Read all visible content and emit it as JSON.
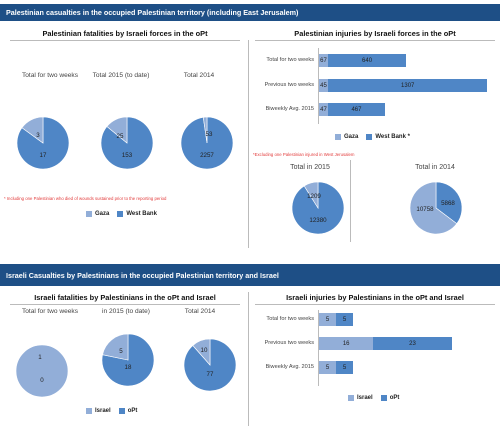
{
  "colors": {
    "light": "#92aed8",
    "dark": "#4f86c6",
    "banner": "#1e4f86",
    "note": "#e23b3b"
  },
  "section1": {
    "banner": "Palestinian casualties in the occupied Palestinian territory (including East Jerusalem)",
    "fatalities": {
      "title": "Palestinian fatalities by Israeli forces in the oPt",
      "pies": [
        {
          "label": "Total for two weeks",
          "light": 3,
          "dark": 17
        },
        {
          "label": "Total 2015 (to date)",
          "light": 25,
          "dark": 153
        },
        {
          "label": "Total 2014",
          "light": 2257,
          "dark": 53
        }
      ],
      "note": "* Including one Palestinian who died of wounds sustained prior to the reporting period",
      "legend": {
        "light": "Gaza",
        "dark": "West Bank"
      }
    },
    "injuries": {
      "title": "Palestinian injuries by Israeli forces in the oPt",
      "bars": [
        {
          "label": "Total for two weeks",
          "light": 67,
          "dark": 640
        },
        {
          "label": "Previous two weeks",
          "light": 45,
          "dark": 1307
        },
        {
          "label": "Biweekly Avg. 2015",
          "light": 47,
          "dark": 467
        }
      ],
      "legend": {
        "light": "Gaza",
        "dark": "West Bank *"
      },
      "note": "*Excluding one Palestinian injured in West Jerusalem",
      "pies": [
        {
          "label": "Total in 2015",
          "light": 1209,
          "dark": 12380
        },
        {
          "label": "Total in 2014",
          "light": 10758,
          "dark": 5868
        }
      ]
    }
  },
  "section2": {
    "banner": "Israeli Casualties by Palestinians in the occupied Palestinian territory and Israel",
    "fatalities": {
      "title": "Israeli fatalities by Palestinians in the oPt and Israel",
      "pies": [
        {
          "label": "Total for two weeks",
          "light": 1,
          "dark": 0
        },
        {
          "label": "in 2015 (to date)",
          "light": 5,
          "dark": 18
        },
        {
          "label": "Total 2014",
          "light": 10,
          "dark": 77
        }
      ],
      "legend": {
        "light": "Israel",
        "dark": "oPt"
      }
    },
    "injuries": {
      "title": "Israeli injuries by Palestinians in the oPt and Israel",
      "bars": [
        {
          "label": "Total for two weeks",
          "light": 5,
          "dark": 5
        },
        {
          "label": "Previous two weeks",
          "light": 16,
          "dark": 23
        },
        {
          "label": "Biweekly Avg. 2015",
          "light": 5,
          "dark": 5
        }
      ],
      "legend": {
        "light": "Israel",
        "dark": "oPt"
      }
    }
  }
}
